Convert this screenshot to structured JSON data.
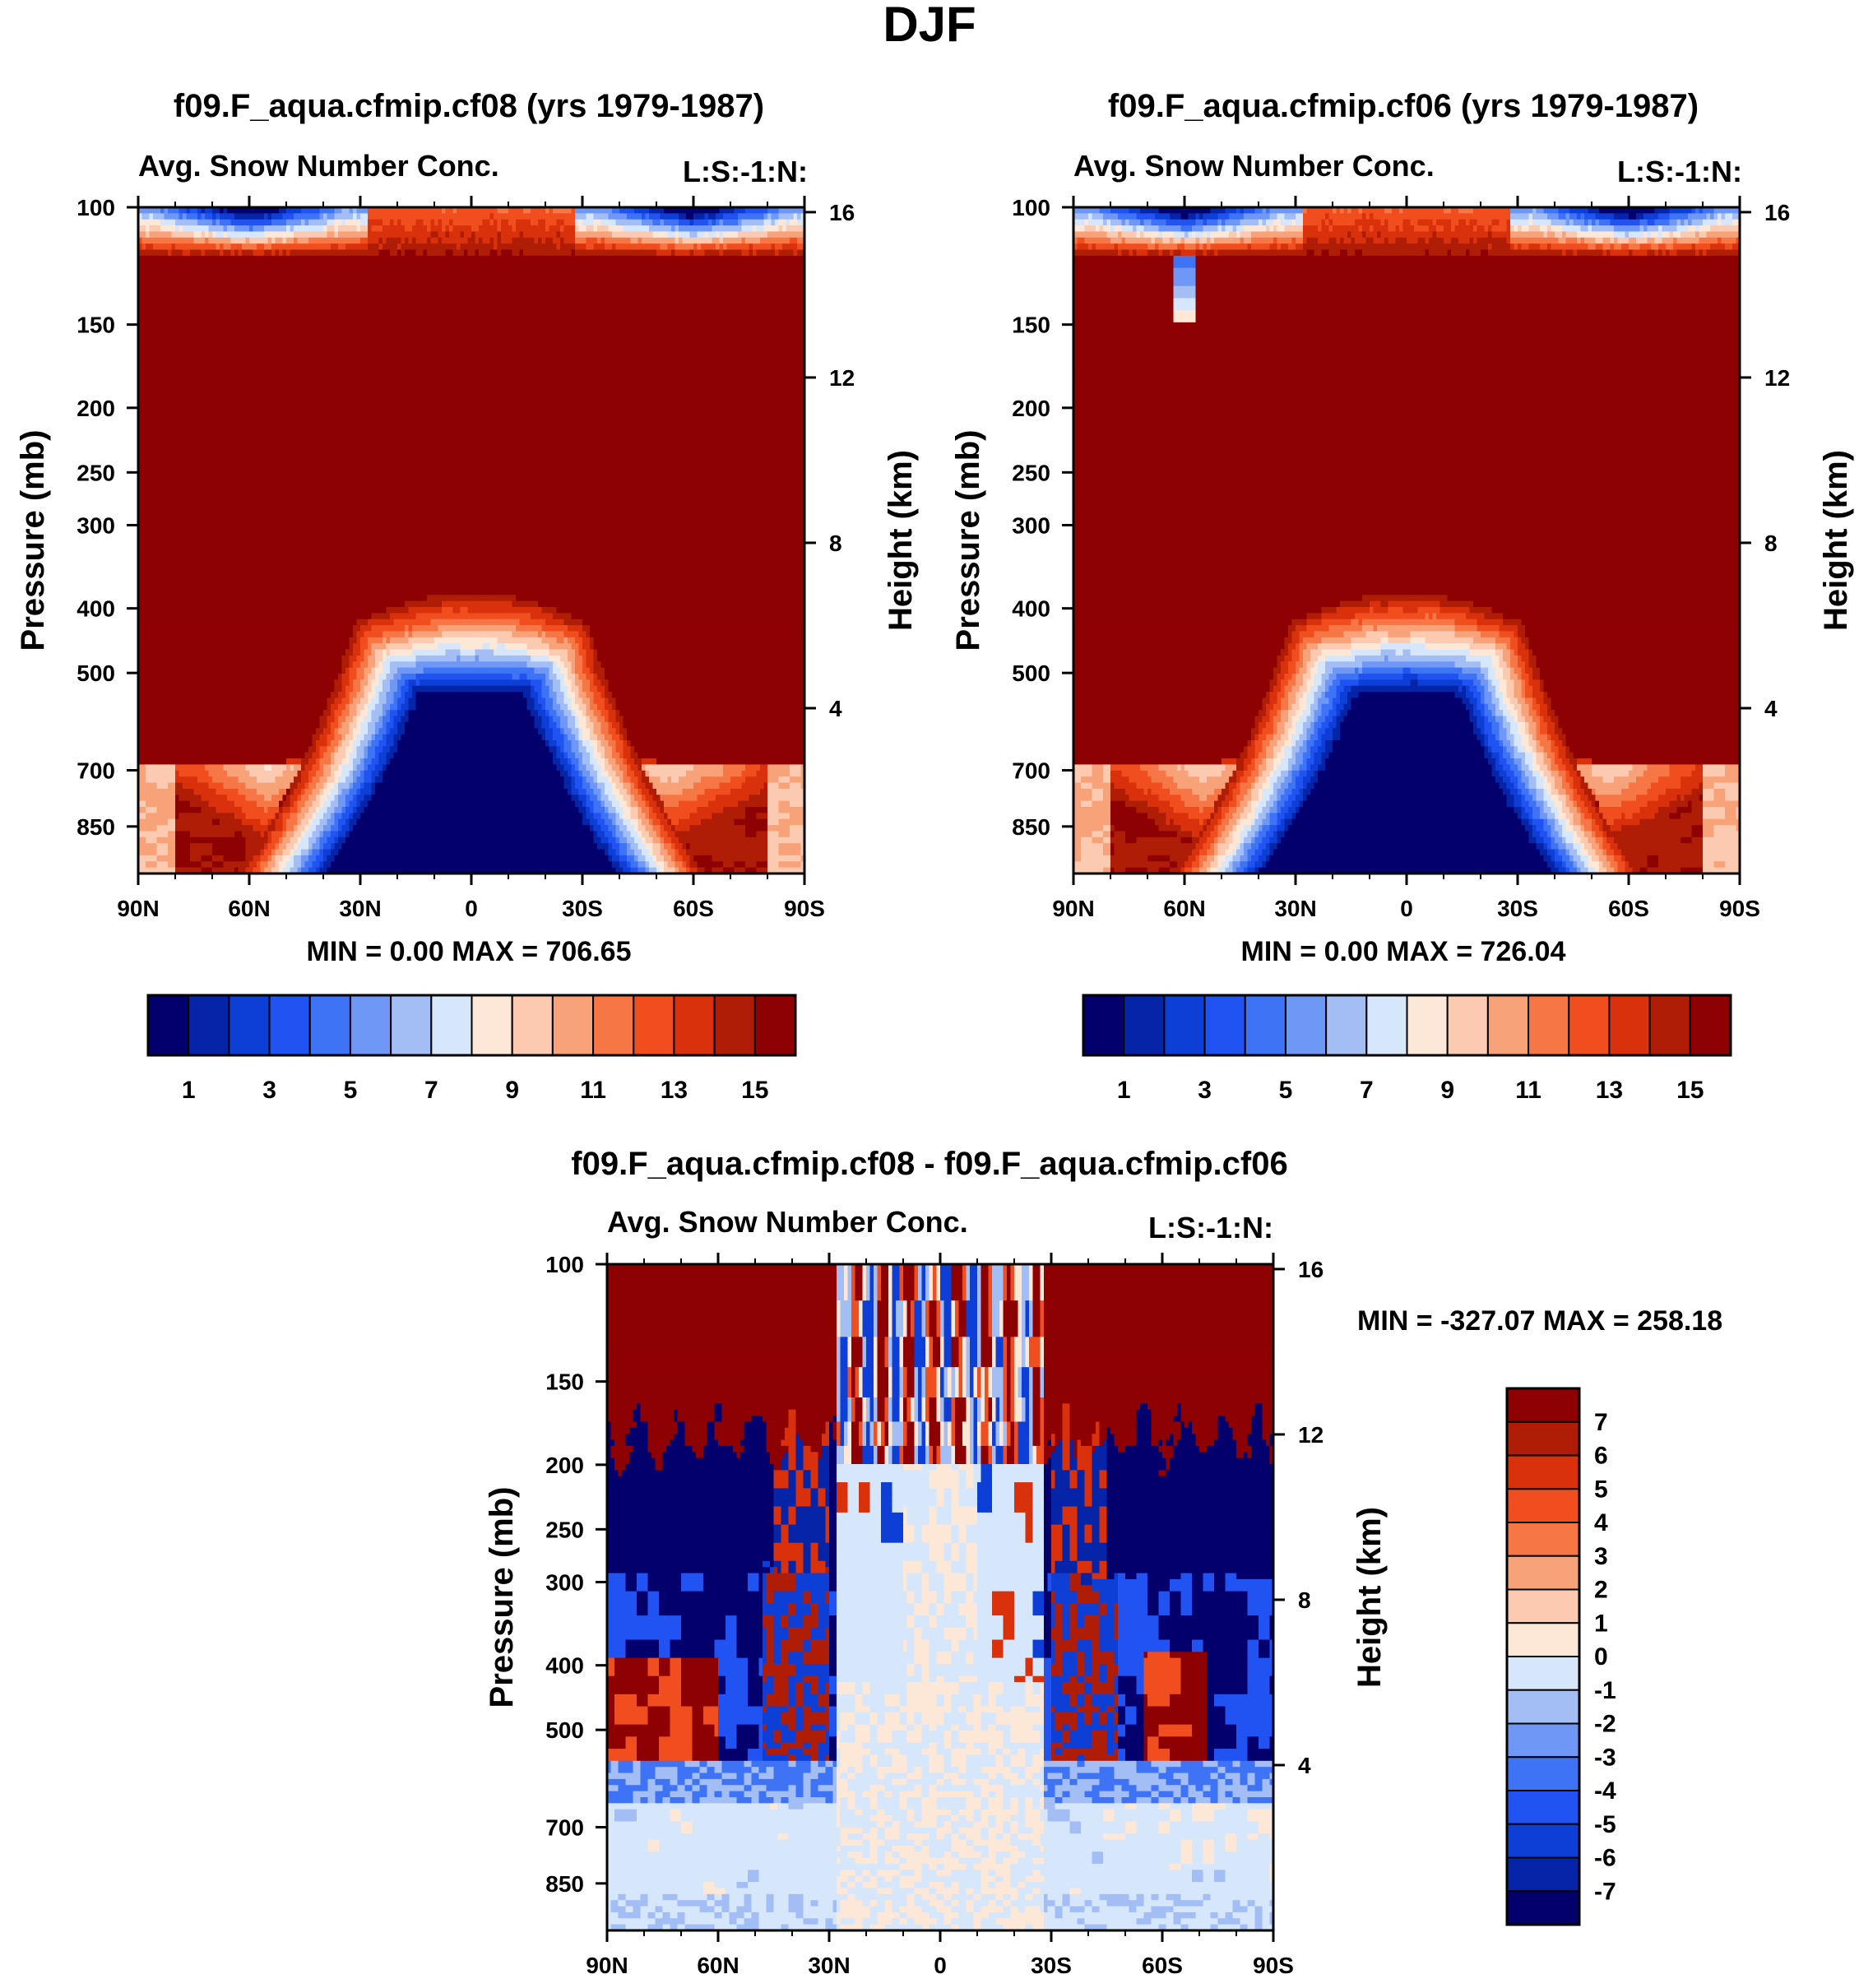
{
  "page_title": "DJF",
  "chart_data": [
    {
      "type": "heatmap",
      "title": "f09.F_aqua.cfmip.cf08 (yrs 1979-1987)",
      "subtitle": "Avg. Snow Number Conc.",
      "right_string": "L:S:-1:N:",
      "ylabel": "Pressure (mb)",
      "ylabel_right": "Height (km)",
      "xticks": [
        "90N",
        "60N",
        "30N",
        "0",
        "30S",
        "60S",
        "90S"
      ],
      "yticks": [
        "100",
        "150",
        "200",
        "250",
        "300",
        "400",
        "500",
        "700",
        "850"
      ],
      "yticks_right": [
        "16",
        "12",
        "8",
        "4"
      ],
      "ylim": [
        100,
        1000
      ],
      "stats": "MIN =    0.00   MAX = 706.65",
      "colorbar_labels": [
        "1",
        "3",
        "5",
        "7",
        "9",
        "11",
        "13",
        "15"
      ],
      "colorbar_levels": 16,
      "field": {
        "mushroom_top_mb": 380,
        "mushroom_lat_edges": [
          -32,
          32
        ],
        "low_level_top_mb": 690,
        "top_low_band_max": 6
      }
    },
    {
      "type": "heatmap",
      "title": "f09.F_aqua.cfmip.cf06 (yrs 1979-1987)",
      "subtitle": "Avg. Snow Number Conc.",
      "right_string": "L:S:-1:N:",
      "ylabel": "Pressure (mb)",
      "ylabel_right": "Height (km)",
      "xticks": [
        "90N",
        "60N",
        "30N",
        "0",
        "30S",
        "60S",
        "90S"
      ],
      "yticks": [
        "100",
        "150",
        "200",
        "250",
        "300",
        "400",
        "500",
        "700",
        "850"
      ],
      "yticks_right": [
        "16",
        "12",
        "8",
        "4"
      ],
      "ylim": [
        100,
        1000
      ],
      "stats": "MIN =    0.00   MAX = 726.04",
      "colorbar_labels": [
        "1",
        "3",
        "5",
        "7",
        "9",
        "11",
        "13",
        "15"
      ],
      "colorbar_levels": 16,
      "field": {
        "mushroom_top_mb": 380,
        "mushroom_lat_edges": [
          -32,
          32
        ],
        "low_level_top_mb": 690,
        "top_low_band_max": 8
      }
    },
    {
      "type": "heatmap",
      "title": "f09.F_aqua.cfmip.cf08 - f09.F_aqua.cfmip.cf06",
      "subtitle": "Avg. Snow Number Conc.",
      "right_string": "L:S:-1:N:",
      "ylabel": "Pressure (mb)",
      "ylabel_right": "Height (km)",
      "xticks": [
        "90N",
        "60N",
        "30N",
        "0",
        "30S",
        "60S",
        "90S"
      ],
      "yticks": [
        "100",
        "150",
        "200",
        "250",
        "300",
        "400",
        "500",
        "700",
        "850"
      ],
      "yticks_right": [
        "16",
        "12",
        "8",
        "4"
      ],
      "ylim": [
        100,
        1000
      ],
      "stats": "MIN = -327.07   MAX = 258.18",
      "colorbar_labels": [
        "7",
        "6",
        "5",
        "4",
        "3",
        "2",
        "1",
        "0",
        "-1",
        "-2",
        "-3",
        "-4",
        "-5",
        "-6",
        "-7"
      ],
      "colorbar_levels": 16
    }
  ],
  "colors": {
    "seq16": [
      "#03006e",
      "#0524a8",
      "#0d3fd6",
      "#2152f2",
      "#3f73f5",
      "#6f97f5",
      "#a3bdf5",
      "#d6e6fb",
      "#fde8d8",
      "#fbcab0",
      "#f8a27a",
      "#f67645",
      "#f04e1e",
      "#d8310b",
      "#b01d06",
      "#8e0102"
    ],
    "div16": [
      "#03006e",
      "#0524a8",
      "#0d3fd6",
      "#2152f2",
      "#3f73f5",
      "#6f97f5",
      "#a3bdf5",
      "#d6e6fb",
      "#fde8d8",
      "#fbcab0",
      "#f8a27a",
      "#f67645",
      "#f04e1e",
      "#d8310b",
      "#b01d06",
      "#8e0102"
    ]
  }
}
